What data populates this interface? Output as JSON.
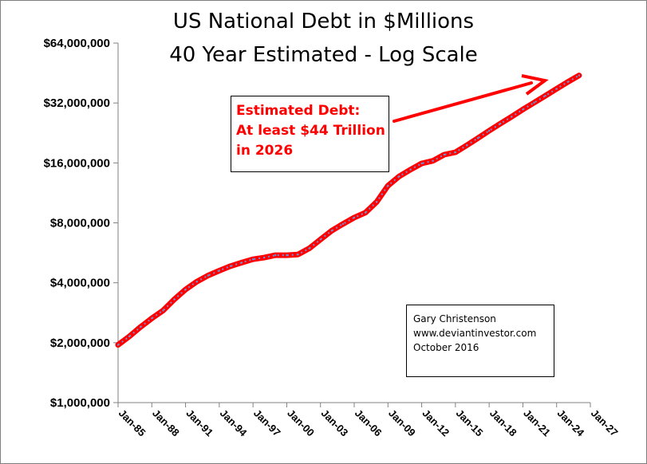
{
  "chart_data": {
    "type": "line",
    "title": "US National Debt in $Millions",
    "subtitle": "40 Year Estimated - Log Scale",
    "xlabel": "",
    "ylabel": "",
    "y_scale": "log",
    "ylim": [
      1000000,
      64000000
    ],
    "y_ticks": [
      1000000,
      2000000,
      4000000,
      8000000,
      16000000,
      32000000,
      64000000
    ],
    "y_tick_labels": [
      "$1,000,000",
      "$2,000,000",
      "$4,000,000",
      "$8,000,000",
      "$16,000,000",
      "$32,000,000",
      "$64,000,000"
    ],
    "x_range": [
      1985,
      2027
    ],
    "x_ticks": [
      1985,
      1988,
      1991,
      1994,
      1997,
      2000,
      2003,
      2006,
      2009,
      2012,
      2015,
      2018,
      2021,
      2024,
      2027
    ],
    "x_tick_labels": [
      "Jan-85",
      "Jan-88",
      "Jan-91",
      "Jan-94",
      "Jan-97",
      "Jan-00",
      "Jan-03",
      "Jan-06",
      "Jan-09",
      "Jan-12",
      "Jan-15",
      "Jan-18",
      "Jan-21",
      "Jan-24",
      "Jan-27"
    ],
    "series": [
      {
        "name": "US National Debt",
        "color": "#ff0000",
        "dash_color": "#6f8fcf",
        "x": [
          1985,
          1986,
          1987,
          1988,
          1989,
          1990,
          1991,
          1992,
          1993,
          1994,
          1995,
          1996,
          1997,
          1998,
          1999,
          2000,
          2001,
          2002,
          2003,
          2004,
          2005,
          2006,
          2007,
          2008,
          2009,
          2010,
          2011,
          2012,
          2013,
          2014,
          2015,
          2016,
          2017,
          2018,
          2019,
          2020,
          2021,
          2022,
          2023,
          2024,
          2025,
          2026
        ],
        "y": [
          1950000,
          2150000,
          2400000,
          2650000,
          2900000,
          3300000,
          3700000,
          4050000,
          4350000,
          4600000,
          4850000,
          5050000,
          5250000,
          5350000,
          5500000,
          5500000,
          5550000,
          5950000,
          6600000,
          7300000,
          7900000,
          8500000,
          9000000,
          10200000,
          12300000,
          13700000,
          14800000,
          15900000,
          16400000,
          17600000,
          18100000,
          19600000,
          21300000,
          23200000,
          25200000,
          27300000,
          29700000,
          32100000,
          34800000,
          37700000,
          40800000,
          44000000
        ]
      }
    ],
    "annotations": [
      {
        "lines": [
          "Estimated  Debt:",
          "At least $44 Trillion",
          "in 2026"
        ],
        "color": "#ff0000"
      },
      {
        "lines": [
          "Gary Christenson",
          "www.deviantinvestor.com",
          "October 2016"
        ],
        "color": "#000000"
      }
    ]
  }
}
